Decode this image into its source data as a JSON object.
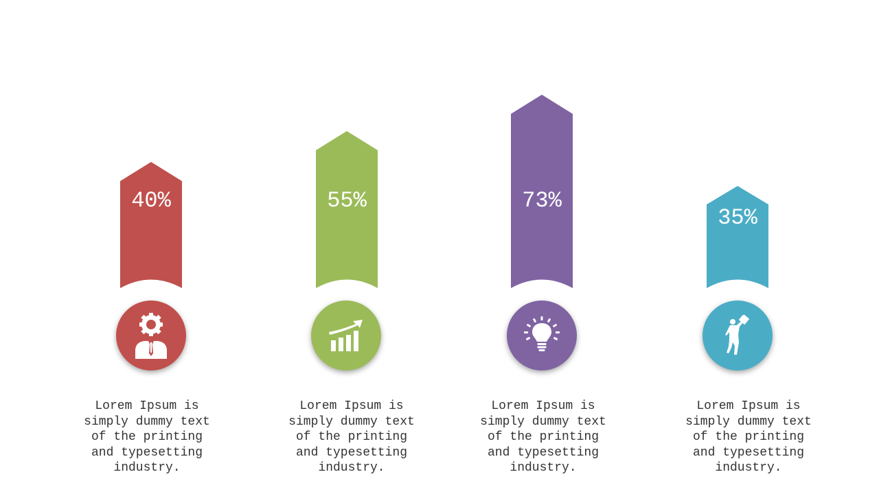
{
  "colors": {
    "red": "#c0504d",
    "green": "#9bbb59",
    "purple": "#8064a2",
    "teal": "#4bacc6"
  },
  "items": [
    {
      "percent": "40%",
      "value": 40,
      "icon": "businessman-gear-icon",
      "color": "#c0504d",
      "description": "Lorem Ipsum is simply dummy text of the printing and typesetting industry."
    },
    {
      "percent": "55%",
      "value": 55,
      "icon": "growth-chart-icon",
      "color": "#9bbb59",
      "description": "Lorem Ipsum is simply dummy text of the printing and typesetting industry."
    },
    {
      "percent": "73%",
      "value": 73,
      "icon": "lightbulb-icon",
      "color": "#8064a2",
      "description": "Lorem Ipsum is simply dummy text of the printing and typesetting industry."
    },
    {
      "percent": "35%",
      "value": 35,
      "icon": "person-with-sign-icon",
      "color": "#4bacc6",
      "description": "Lorem Ipsum is simply dummy text of the printing and typesetting industry."
    }
  ]
}
